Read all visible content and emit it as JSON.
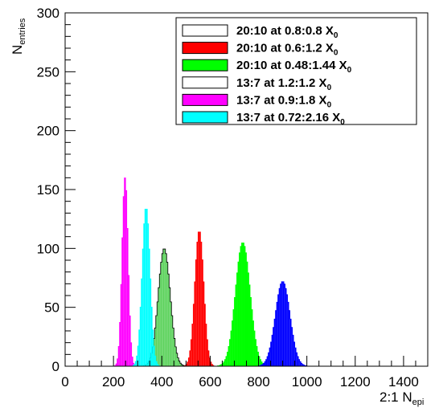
{
  "chart_data": {
    "type": "histogram",
    "xlabel": {
      "main": "2:1 N",
      "sub": "epi"
    },
    "ylabel": {
      "main": "N",
      "sub": "entries"
    },
    "xlim": [
      0,
      1500
    ],
    "ylim": [
      0,
      300
    ],
    "x_ticks": [
      "0",
      "200",
      "400",
      "600",
      "800",
      "1000",
      "1200",
      "1400"
    ],
    "y_ticks": [
      "0",
      "50",
      "100",
      "150",
      "200",
      "250",
      "300"
    ],
    "bin_width": 5,
    "legend_position": "top-right",
    "legend": [
      {
        "label": "20:10 at 0.8:0.8 X",
        "sub": "0",
        "color": "#ffffff"
      },
      {
        "label": "20:10 at 0.6:1.2 X",
        "sub": "0",
        "color": "#ff0000"
      },
      {
        "label": "20:10 at 0.48:1.44 X",
        "sub": "0",
        "color": "#00ff00"
      },
      {
        "label": "13:7  at 1.2:1.2 X",
        "sub": "0",
        "color": "#ffffff"
      },
      {
        "label": "13:7  at 0.9:1.8 X",
        "sub": "0",
        "color": "#ff00ff"
      },
      {
        "label": "13:7  at 0.72:2.16 X",
        "sub": "0",
        "color": "#00ffff"
      }
    ],
    "series": [
      {
        "name": "13:7  at 1.2:1.2 X0",
        "fill": "#5fd35f",
        "line": "#000000",
        "center": 410,
        "sigma": 25,
        "peak": 100,
        "x": [
          340,
          350,
          360,
          370,
          380,
          390,
          400,
          410,
          420,
          430,
          440,
          450,
          460,
          470,
          480
        ],
        "values": [
          2,
          5,
          12,
          25,
          48,
          75,
          95,
          100,
          95,
          75,
          48,
          25,
          12,
          5,
          2
        ]
      },
      {
        "name": "20:10 at 0.6:1.2 X0",
        "fill": "#ff0000",
        "line": "#ff0000",
        "center": 555,
        "sigma": 18,
        "peak": 115,
        "x": [
          505,
          515,
          525,
          535,
          545,
          550,
          555,
          560,
          565,
          575,
          585,
          595,
          605
        ],
        "values": [
          2,
          8,
          25,
          58,
          95,
          110,
          115,
          110,
          95,
          58,
          25,
          8,
          2
        ]
      },
      {
        "name": "20:10 at 0.48:1.44 X0",
        "fill": "#00ff00",
        "line": "#00ff00",
        "center": 735,
        "sigma": 30,
        "peak": 105,
        "x": [
          655,
          670,
          685,
          700,
          715,
          725,
          735,
          745,
          755,
          770,
          785,
          800,
          815
        ],
        "values": [
          3,
          10,
          25,
          50,
          80,
          97,
          105,
          97,
          80,
          50,
          25,
          10,
          3
        ]
      },
      {
        "name": "20:10 at 0.8:0.8 X0",
        "fill": "#0000ff",
        "line": "#0000ff",
        "center": 900,
        "sigma": 30,
        "peak": 72,
        "x": [
          820,
          835,
          850,
          865,
          880,
          890,
          900,
          910,
          920,
          935,
          950,
          965,
          980
        ],
        "values": [
          2,
          7,
          18,
          35,
          55,
          66,
          72,
          66,
          55,
          35,
          18,
          7,
          2
        ]
      },
      {
        "name": "13:7  at 0.9:1.8 X0",
        "fill": "#ff00ff",
        "line": "#ff00ff",
        "center": 248,
        "sigma": 12,
        "peak": 160,
        "x": [
          215,
          225,
          235,
          240,
          245,
          250,
          255,
          260,
          270,
          280
        ],
        "values": [
          5,
          35,
          95,
          135,
          160,
          155,
          120,
          75,
          20,
          3
        ]
      },
      {
        "name": "13:7  at 0.72:2.16 X0",
        "fill": "#00ffff",
        "line": "#00ffff",
        "center": 335,
        "sigma": 16,
        "peak": 135,
        "x": [
          290,
          300,
          310,
          320,
          330,
          335,
          340,
          350,
          360,
          370,
          380
        ],
        "values": [
          3,
          15,
          45,
          90,
          125,
          135,
          128,
          95,
          48,
          15,
          3
        ]
      }
    ]
  }
}
